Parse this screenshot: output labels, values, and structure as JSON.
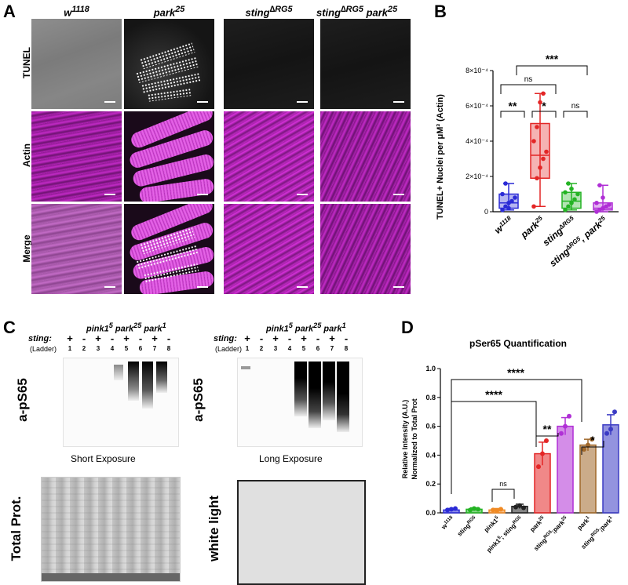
{
  "panel_a": {
    "letter": "A",
    "columns": [
      "w",
      "park",
      "sting",
      "sting",
      "park"
    ],
    "col_sup": [
      "1118",
      "25",
      "∆RG5",
      "∆RG5",
      "25"
    ],
    "rows": [
      "TUNEL",
      "Actin",
      "Merge"
    ]
  },
  "panel_b": {
    "letter": "B",
    "ylabel": "TUNEL+ Nuclei per μM³ (Actin)",
    "yticks": [
      "0",
      "2×10⁻⁴",
      "4×10⁻⁴",
      "6×10⁻⁴",
      "8×10⁻⁴"
    ],
    "xlabels": [
      "w",
      "park",
      "sting",
      "sting",
      ", park"
    ],
    "xsup": [
      "1118",
      "25",
      "∆RG5",
      "∆RG5",
      "25"
    ],
    "sig": [
      "***",
      "ns",
      "**",
      "*",
      "ns"
    ]
  },
  "panel_c": {
    "letter": "C",
    "sting_label": "sting:",
    "ladder": "(Ladder)",
    "genotypes": [
      "pink1",
      "park",
      "park"
    ],
    "genotypes_sup": [
      "5",
      "25",
      "1"
    ],
    "signs": [
      "+",
      "-",
      "+",
      "-",
      "+",
      "-",
      "+",
      "-"
    ],
    "lanes": [
      "1",
      "2",
      "3",
      "4",
      "5",
      "6",
      "7",
      "8"
    ],
    "blot_title": "a-pS65",
    "short_exposure": "Short Exposure",
    "long_exposure": "Long Exposure",
    "total_prot": "Total Prot.",
    "white_light": "white light"
  },
  "panel_d": {
    "letter": "D",
    "title": "pSer65 Quantification",
    "ylabel_line1": "Relative Intensity (A.U.)",
    "ylabel_line2": "Normalized to Total Prot",
    "yticks": [
      "0.0",
      "0.2",
      "0.4",
      "0.6",
      "0.8",
      "1.0"
    ],
    "sig": [
      "****",
      "****",
      "**",
      "*",
      "ns"
    ]
  },
  "chart_data": [
    {
      "type": "box",
      "title": "",
      "ylabel": "TUNEL+ Nuclei per μM³ (Actin)",
      "ylim": [
        0,
        0.0008
      ],
      "categories": [
        "w1118",
        "park25",
        "sting∆RG5",
        "sting∆RG5, park25"
      ],
      "colors": [
        "#2b2bd6",
        "#e32626",
        "#24b324",
        "#b02fd6"
      ],
      "boxes": [
        {
          "min": 1e-05,
          "q1": 2e-05,
          "median": 5e-05,
          "q3": 0.0001,
          "max": 0.00016
        },
        {
          "min": 3e-05,
          "q1": 0.00019,
          "median": 0.00032,
          "q3": 0.0005,
          "max": 0.00067
        },
        {
          "min": 1e-05,
          "q1": 2e-05,
          "median": 6e-05,
          "q3": 0.00011,
          "max": 0.00016
        },
        {
          "min": 0.0,
          "q1": 1e-05,
          "median": 2e-05,
          "q3": 5e-05,
          "max": 0.00015
        }
      ],
      "points": [
        [
          1e-05,
          3e-05,
          5e-05,
          6e-05,
          8e-05,
          0.0001,
          0.00016,
          2e-05
        ],
        [
          3e-05,
          0.00019,
          0.00025,
          0.0003,
          0.00034,
          0.0004,
          0.00048,
          0.00062,
          0.00067
        ],
        [
          1e-05,
          3e-05,
          5e-05,
          7e-05,
          0.0001,
          0.00011,
          0.00016,
          0.00013
        ],
        [
          0.0,
          1e-05,
          2e-05,
          3e-05,
          4e-05,
          5e-05,
          0.00015,
          8e-05
        ]
      ]
    },
    {
      "type": "bar",
      "title": "pSer65 Quantification",
      "ylabel": "Relative Intensity (A.U.) Normalized to Total Prot",
      "ylim": [
        0,
        1.0
      ],
      "categories": [
        "w1118",
        "stingRG5",
        "pink1 5",
        "pink1 5; stingRG5",
        "park25",
        "stingRG5;park25",
        "park1",
        "stingRG5;park1"
      ],
      "cat_base": [
        "w",
        "sting",
        "pink1",
        "pink1",
        "park",
        "sting",
        "park",
        "sting"
      ],
      "cat_sup": [
        "1118",
        "RG5",
        "5",
        "5",
        "25",
        "RG5",
        "1",
        "RG5"
      ],
      "cat_tail": [
        "",
        "",
        "",
        "; sting",
        "",
        ";park",
        "",
        ";park"
      ],
      "cat_sup2": [
        "",
        "",
        "",
        "RG5",
        "",
        "25",
        "",
        "1"
      ],
      "values": [
        0.02,
        0.025,
        0.02,
        0.045,
        0.41,
        0.6,
        0.47,
        0.61
      ],
      "errors": [
        0.01,
        0.01,
        0.01,
        0.015,
        0.08,
        0.06,
        0.04,
        0.07
      ],
      "points": [
        [
          0.02,
          0.025,
          0.03
        ],
        [
          0.02,
          0.03,
          0.025
        ],
        [
          0.02,
          0.015,
          0.025
        ],
        [
          0.04,
          0.05,
          0.035
        ],
        [
          0.32,
          0.41,
          0.5
        ],
        [
          0.55,
          0.6,
          0.67
        ],
        [
          0.44,
          0.47,
          0.51
        ],
        [
          0.55,
          0.58,
          0.7
        ]
      ],
      "colors": [
        "#2b2bd6",
        "#24b324",
        "#f08a24",
        "#222222",
        "#e32626",
        "#b02fd6",
        "#a0682a",
        "#3b3bc4"
      ]
    }
  ]
}
